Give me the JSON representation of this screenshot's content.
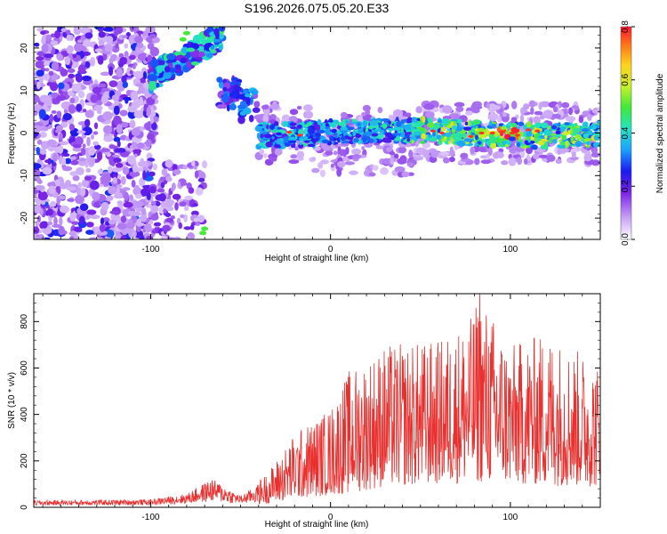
{
  "title": "S196.2026.075.05.20.E33",
  "chart_data": [
    {
      "type": "heatmap",
      "xlabel": "Height of straight line (km)",
      "ylabel": "Frequency (Hz)",
      "xlim": [
        -165,
        150
      ],
      "ylim": [
        -25,
        25
      ],
      "xticks": [
        -100,
        0,
        100
      ],
      "xtick_labels": [
        "-100",
        "0",
        "100"
      ],
      "yticks": [
        -20,
        -10,
        0,
        10,
        20
      ],
      "ytick_labels": [
        "-20",
        "-10",
        "0",
        "10",
        "20"
      ],
      "colorbar": {
        "label": "Normalized spectral amplitude",
        "range": [
          0.0,
          0.8
        ],
        "ticks": [
          0.0,
          0.2,
          0.4,
          0.6,
          0.8
        ],
        "tick_labels": [
          "0.0",
          "0.2",
          "0.4",
          "0.6",
          "0.8"
        ]
      },
      "features": [
        {
          "name": "noise region",
          "x_range": [
            -165,
            -100
          ],
          "f_range": [
            -25,
            25
          ],
          "amplitude": 0.1
        },
        {
          "name": "upper branch",
          "x_range": [
            -100,
            -60
          ],
          "f_range": [
            13,
            25
          ],
          "amplitude": 0.3
        },
        {
          "name": "transition",
          "x_range": [
            -60,
            -40
          ],
          "f_range": [
            3,
            10
          ],
          "amplitude": 0.25
        },
        {
          "name": "main band",
          "x_range": [
            -40,
            150
          ],
          "f_center": 0,
          "f_halfwidth": 3,
          "amplitude_peak": 0.8,
          "peak_at_x": 95
        }
      ]
    },
    {
      "type": "line",
      "xlabel": "Height of straight line (km)",
      "ylabel": "SNR (10 * v/v)",
      "xlim": [
        -165,
        150
      ],
      "ylim": [
        0,
        920
      ],
      "xticks": [
        -100,
        0,
        100
      ],
      "xtick_labels": [
        "-100",
        "0",
        "100"
      ],
      "yticks": [
        0,
        200,
        400,
        600,
        800
      ],
      "ytick_labels": [
        "0",
        "200",
        "400",
        "600",
        "800"
      ],
      "color": "#e8302e",
      "series_envelope": [
        {
          "x": -165,
          "baseline": 15,
          "max": 35
        },
        {
          "x": -100,
          "baseline": 20,
          "max": 40
        },
        {
          "x": -80,
          "baseline": 30,
          "max": 70
        },
        {
          "x": -66,
          "baseline": 45,
          "max": 150
        },
        {
          "x": -50,
          "baseline": 30,
          "max": 60
        },
        {
          "x": -35,
          "baseline": 40,
          "max": 150
        },
        {
          "x": -20,
          "baseline": 90,
          "max": 320
        },
        {
          "x": 0,
          "baseline": 130,
          "max": 430
        },
        {
          "x": 10,
          "baseline": 150,
          "max": 590
        },
        {
          "x": 30,
          "baseline": 220,
          "max": 700
        },
        {
          "x": 60,
          "baseline": 250,
          "max": 720
        },
        {
          "x": 78,
          "baseline": 260,
          "max": 820
        },
        {
          "x": 83,
          "baseline": 270,
          "max": 920
        },
        {
          "x": 100,
          "baseline": 250,
          "max": 700
        },
        {
          "x": 120,
          "baseline": 230,
          "max": 760
        },
        {
          "x": 150,
          "baseline": 220,
          "max": 620
        }
      ]
    }
  ]
}
